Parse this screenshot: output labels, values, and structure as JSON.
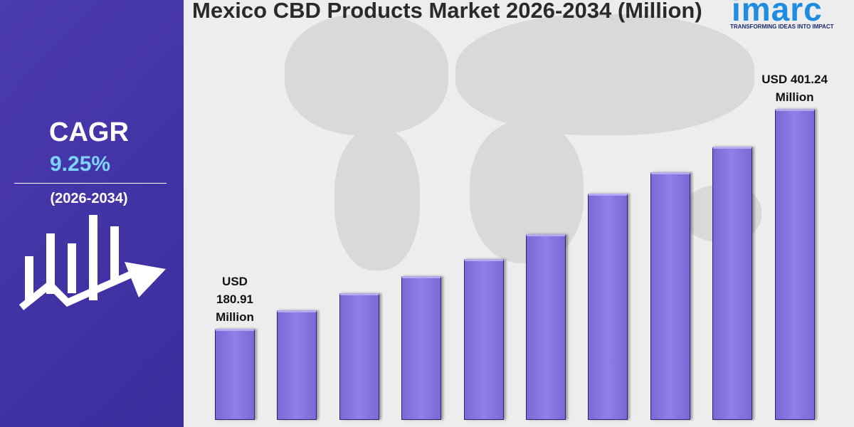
{
  "chart_data": {
    "type": "bar",
    "title": "Mexico CBD Products Market 2026-2034 (Million)",
    "categories": [
      null,
      null,
      null,
      null,
      null,
      null,
      null,
      null,
      null,
      null
    ],
    "values": [
      180.91,
      200,
      217,
      234,
      251,
      276,
      317,
      338,
      364,
      401.24
    ],
    "value_labels": [
      "USD 180.91 Million",
      null,
      null,
      null,
      null,
      null,
      null,
      null,
      null,
      "USD 401.24 Million"
    ],
    "ylim": [
      90,
      420
    ],
    "color": "#7b68d6"
  },
  "sidebar": {
    "label": "CAGR",
    "value": "9.25%",
    "period": "(2026-2034)"
  },
  "logo": {
    "name": "imarc",
    "tagline": "TRANSFORMING IDEAS INTO IMPACT"
  }
}
